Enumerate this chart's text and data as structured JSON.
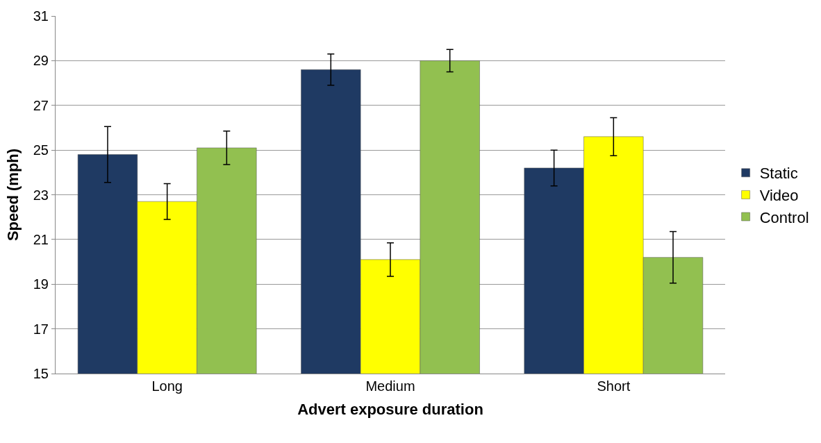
{
  "chart_data": {
    "type": "bar",
    "xlabel": "Advert exposure duration",
    "ylabel": "Speed (mph)",
    "categories": [
      "Long",
      "Medium",
      "Short"
    ],
    "series": [
      {
        "name": "Static",
        "color": "#1f3a63",
        "values": [
          24.8,
          28.6,
          24.2
        ],
        "errors": [
          1.25,
          0.7,
          0.8
        ]
      },
      {
        "name": "Video",
        "color": "#ffff00",
        "values": [
          22.7,
          20.1,
          25.6
        ],
        "errors": [
          0.8,
          0.75,
          0.85
        ]
      },
      {
        "name": "Control",
        "color": "#92c050",
        "values": [
          25.1,
          29.0,
          20.2
        ],
        "errors": [
          0.75,
          0.5,
          1.15
        ]
      }
    ],
    "ylim": [
      15,
      31
    ],
    "yticks": [
      15,
      17,
      19,
      21,
      23,
      25,
      27,
      29,
      31
    ],
    "grid": "y",
    "legend": "right"
  }
}
